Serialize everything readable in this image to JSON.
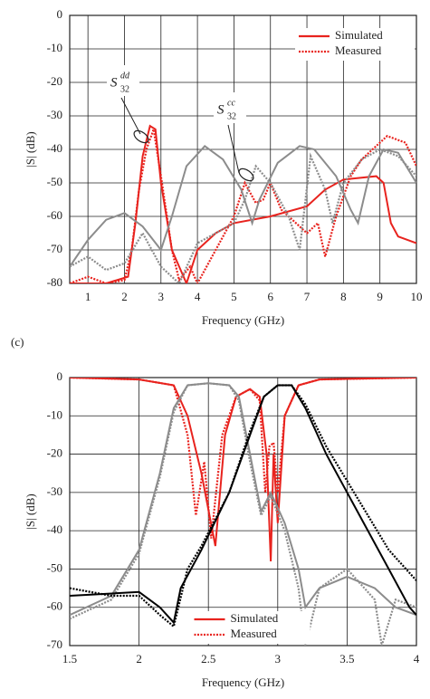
{
  "chart_data": [
    {
      "type": "line",
      "xlabel": "Frequency (GHz)",
      "ylabel": "|S| (dB)",
      "xlim": [
        0.5,
        10
      ],
      "xticks": [
        1,
        2,
        3,
        4,
        5,
        6,
        7,
        8,
        9,
        10
      ],
      "ylim": [
        -80,
        0
      ],
      "yticks": [
        0,
        -10,
        -20,
        -30,
        -40,
        -50,
        -60,
        -70,
        -80
      ],
      "grid": true,
      "legend": "upper right",
      "annotations": [
        {
          "text": "S",
          "sup": "dd",
          "sub": "32"
        },
        {
          "text": "S",
          "sup": "cc",
          "sub": "32"
        }
      ],
      "series": [
        {
          "name": "Simulated",
          "color": "#e8231e",
          "style": "solid",
          "x": [
            0.5,
            1.5,
            2.1,
            2.3,
            2.5,
            2.7,
            2.85,
            3.0,
            3.3,
            3.7,
            4.0,
            4.5,
            5.0,
            6.0,
            7.0,
            7.5,
            8.0,
            8.9,
            9.1,
            9.3,
            9.5,
            10
          ],
          "values": [
            -80,
            -80,
            -78,
            -62,
            -42,
            -33,
            -34,
            -50,
            -70,
            -80,
            -70,
            -65,
            -62,
            -60,
            -57,
            -52,
            -49,
            -48,
            -50,
            -62,
            -66,
            -68
          ]
        },
        {
          "name": "Measured",
          "color": "#e8231e",
          "style": "dotted",
          "x": [
            0.5,
            1.0,
            1.5,
            2.0,
            2.2,
            2.4,
            2.6,
            2.8,
            3.0,
            3.3,
            3.5,
            3.8,
            4.0,
            4.5,
            5.0,
            5.3,
            5.6,
            5.8,
            6.0,
            6.3,
            6.5,
            7.0,
            7.3,
            7.5,
            7.8,
            8.2,
            8.5,
            8.8,
            9.2,
            9.7,
            10
          ],
          "values": [
            -80,
            -78,
            -80,
            -79,
            -70,
            -52,
            -40,
            -34,
            -48,
            -70,
            -79,
            -75,
            -80,
            -70,
            -60,
            -50,
            -56,
            -55,
            -50,
            -58,
            -60,
            -65,
            -62,
            -72,
            -60,
            -48,
            -43,
            -40,
            -36,
            -38,
            -45
          ]
        },
        {
          "name": "Simulated",
          "color": "#8c8c8c",
          "style": "solid",
          "x": [
            0.5,
            1.0,
            1.5,
            2.0,
            2.5,
            3.0,
            3.3,
            3.7,
            4.2,
            4.7,
            5.2,
            5.5,
            5.7,
            6.2,
            6.8,
            7.2,
            7.8,
            8.2,
            8.4,
            8.7,
            9.1,
            9.5,
            10
          ],
          "values": [
            -75,
            -67,
            -61,
            -59,
            -63,
            -70,
            -60,
            -45,
            -39,
            -43,
            -52,
            -62,
            -55,
            -44,
            -39,
            -40,
            -48,
            -58,
            -62,
            -48,
            -40,
            -41,
            -50
          ]
        },
        {
          "name": "Measured",
          "color": "#8c8c8c",
          "style": "dotted",
          "x": [
            0.5,
            1.0,
            1.5,
            2.0,
            2.5,
            3.0,
            3.5,
            4.0,
            4.5,
            5.0,
            5.3,
            5.6,
            6.0,
            6.5,
            6.8,
            7.1,
            7.5,
            7.7,
            8.0,
            8.5,
            9.0,
            9.5,
            10
          ],
          "values": [
            -75,
            -72,
            -76,
            -74,
            -65,
            -75,
            -80,
            -68,
            -65,
            -62,
            -55,
            -45,
            -50,
            -60,
            -70,
            -42,
            -52,
            -62,
            -50,
            -43,
            -40,
            -42,
            -48
          ]
        }
      ]
    },
    {
      "type": "line",
      "label": "(c)",
      "xlabel": "Frequency (GHz)",
      "ylabel": "|S| (dB)",
      "xlim": [
        1.5,
        4
      ],
      "xticks": [
        1.5,
        2,
        2.5,
        3,
        3.5,
        4
      ],
      "ylim": [
        -70,
        0
      ],
      "yticks": [
        0,
        -10,
        -20,
        -30,
        -40,
        -50,
        -60,
        -70
      ],
      "grid": true,
      "legend": "lower center",
      "series": [
        {
          "name": "Simulated",
          "color": "#e8231e",
          "style": "solid",
          "x": [
            1.5,
            2.0,
            2.25,
            2.35,
            2.45,
            2.55,
            2.62,
            2.7,
            2.8,
            2.87,
            2.92,
            2.95,
            2.97,
            3.0,
            3.05,
            3.15,
            3.3,
            4.0
          ],
          "values": [
            0,
            -0.5,
            -2,
            -10,
            -25,
            -44,
            -15,
            -5,
            -3,
            -5,
            -20,
            -48,
            -20,
            -38,
            -10,
            -2,
            -0.5,
            0
          ]
        },
        {
          "name": "Measured",
          "color": "#e8231e",
          "style": "dotted",
          "x": [
            1.5,
            2.0,
            2.25,
            2.35,
            2.41,
            2.47,
            2.52,
            2.6,
            2.7,
            2.8,
            2.87,
            2.91,
            2.94,
            2.97,
            3.0,
            3.05,
            3.15,
            3.3,
            4.0
          ],
          "values": [
            0,
            -0.5,
            -2,
            -15,
            -36,
            -22,
            -42,
            -15,
            -5,
            -3,
            -6,
            -30,
            -18,
            -17,
            -30,
            -10,
            -2,
            -0.5,
            0
          ]
        },
        {
          "name": "Simulated",
          "color": "#8c8c8c",
          "style": "solid",
          "x": [
            1.5,
            1.8,
            2.0,
            2.15,
            2.25,
            2.35,
            2.5,
            2.65,
            2.72,
            2.8,
            2.88,
            2.95,
            3.05,
            3.15,
            3.2,
            3.3,
            3.5,
            3.7,
            3.85,
            4.0
          ],
          "values": [
            -62,
            -57,
            -45,
            -25,
            -8,
            -2,
            -1.5,
            -2,
            -5,
            -20,
            -35,
            -30,
            -38,
            -50,
            -60,
            -55,
            -52,
            -55,
            -60,
            -62
          ]
        },
        {
          "name": "Measured",
          "color": "#8c8c8c",
          "style": "dotted",
          "x": [
            1.5,
            1.8,
            2.0,
            2.15,
            2.25,
            2.35,
            2.5,
            2.65,
            2.72,
            2.8,
            2.88,
            2.95,
            3.05,
            3.15,
            3.2,
            3.3,
            3.5,
            3.7,
            3.75,
            3.85,
            4.0
          ],
          "values": [
            -63,
            -58,
            -46,
            -26,
            -9,
            -2,
            -1.5,
            -2,
            -6,
            -22,
            -36,
            -31,
            -40,
            -55,
            -70,
            -55,
            -50,
            -58,
            -70,
            -58,
            -60
          ]
        },
        {
          "name": "Simulated",
          "color": "#000000",
          "style": "solid",
          "x": [
            1.5,
            2.0,
            2.15,
            2.25,
            2.3,
            2.45,
            2.65,
            2.8,
            2.9,
            3.0,
            3.1,
            3.2,
            3.35,
            3.5,
            3.65,
            3.8,
            3.95,
            4.0
          ],
          "values": [
            -57,
            -56,
            -60,
            -64,
            -55,
            -45,
            -30,
            -15,
            -5,
            -2,
            -2,
            -8,
            -20,
            -30,
            -40,
            -50,
            -60,
            -62
          ]
        },
        {
          "name": "Measured",
          "color": "#000000",
          "style": "dotted",
          "x": [
            1.5,
            1.8,
            2.0,
            2.15,
            2.25,
            2.35,
            2.45,
            2.65,
            2.8,
            2.9,
            3.0,
            3.1,
            3.2,
            3.35,
            3.5,
            3.65,
            3.8,
            3.95,
            4.0
          ],
          "values": [
            -55,
            -57,
            -57,
            -62,
            -65,
            -50,
            -44,
            -30,
            -14,
            -5,
            -2,
            -2,
            -7,
            -18,
            -27,
            -36,
            -45,
            -51,
            -53
          ]
        }
      ]
    }
  ]
}
